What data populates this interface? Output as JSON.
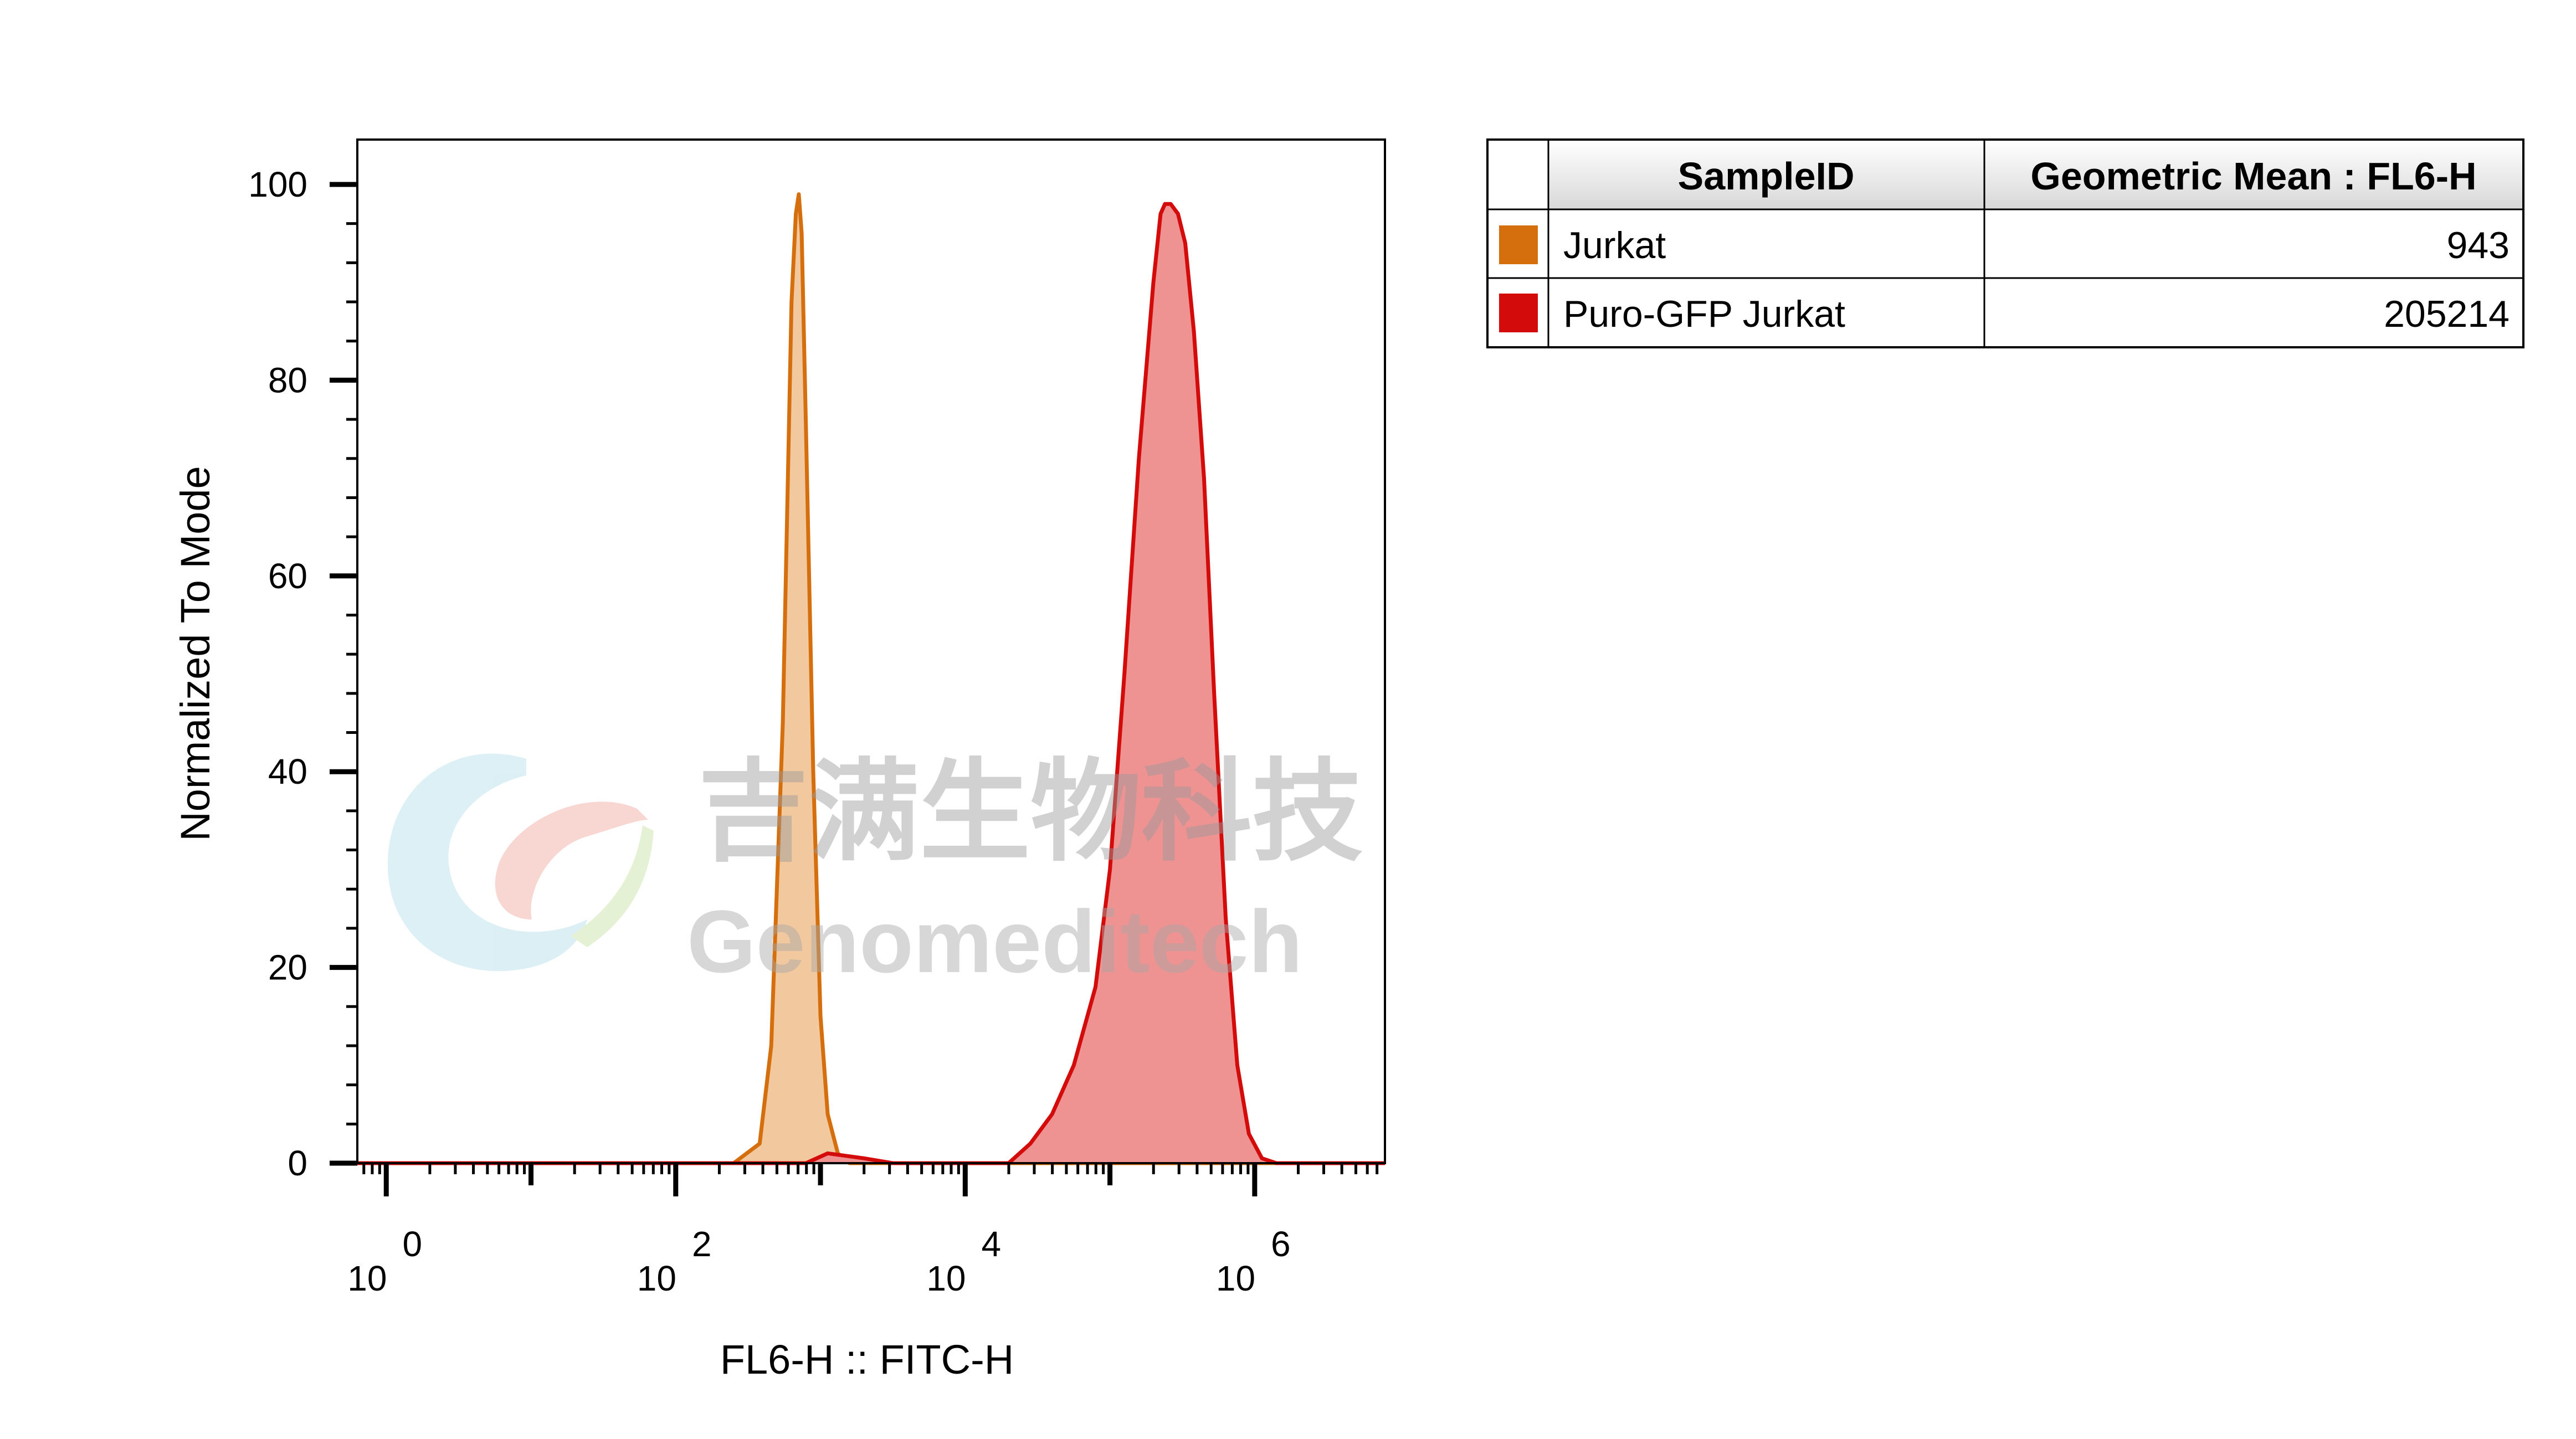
{
  "chart_data": {
    "type": "area",
    "title": "",
    "xlabel": "FL6-H :: FITC-H",
    "ylabel": "Normalized To Mode",
    "xscale": "log",
    "xlim_log10": [
      -0.2,
      6.9
    ],
    "ylim": [
      0,
      100
    ],
    "y_ticks": [
      0,
      20,
      40,
      60,
      80,
      100
    ],
    "x_tick_labels": [
      {
        "base": "10",
        "exp": "0"
      },
      {
        "base": "10",
        "exp": "2"
      },
      {
        "base": "10",
        "exp": "4"
      },
      {
        "base": "10",
        "exp": "6"
      }
    ],
    "series": [
      {
        "name": "Jurkat",
        "color": "#d56f0e",
        "fill": "#f2c89f",
        "log10_x": [
          -0.2,
          2.4,
          2.58,
          2.66,
          2.74,
          2.8,
          2.83,
          2.85,
          2.87,
          2.9,
          2.95,
          3.0,
          3.05,
          3.12,
          3.2,
          6.9
        ],
        "y": [
          0,
          0,
          2,
          12,
          45,
          88,
          97,
          99,
          95,
          75,
          40,
          15,
          5,
          1,
          0,
          0
        ]
      },
      {
        "name": "Puro-GFP Jurkat",
        "color": "#d40b0b",
        "fill": "#ee9292",
        "log10_x": [
          -0.2,
          2.9,
          3.05,
          3.3,
          3.5,
          4.3,
          4.45,
          4.6,
          4.75,
          4.9,
          5.0,
          5.1,
          5.2,
          5.3,
          5.35,
          5.38,
          5.42,
          5.47,
          5.52,
          5.58,
          5.65,
          5.72,
          5.8,
          5.88,
          5.96,
          6.05,
          6.15,
          6.9
        ],
        "y": [
          0,
          0,
          1,
          0.5,
          0,
          0,
          2,
          5,
          10,
          18,
          30,
          50,
          72,
          90,
          97,
          98,
          98,
          97,
          94,
          85,
          70,
          48,
          25,
          10,
          3,
          0.5,
          0,
          0
        ]
      }
    ],
    "stats_table": {
      "headers": [
        "SampleID",
        "Geometric Mean : FL6-H"
      ],
      "rows": [
        {
          "sample": "Jurkat",
          "value": "943",
          "color": "#d56f0e"
        },
        {
          "sample": "Puro-GFP Jurkat",
          "value": "205214",
          "color": "#d40b0b"
        }
      ]
    }
  },
  "watermark": {
    "text_cn": "吉满生物科技",
    "text_en": "Genomeditech"
  }
}
